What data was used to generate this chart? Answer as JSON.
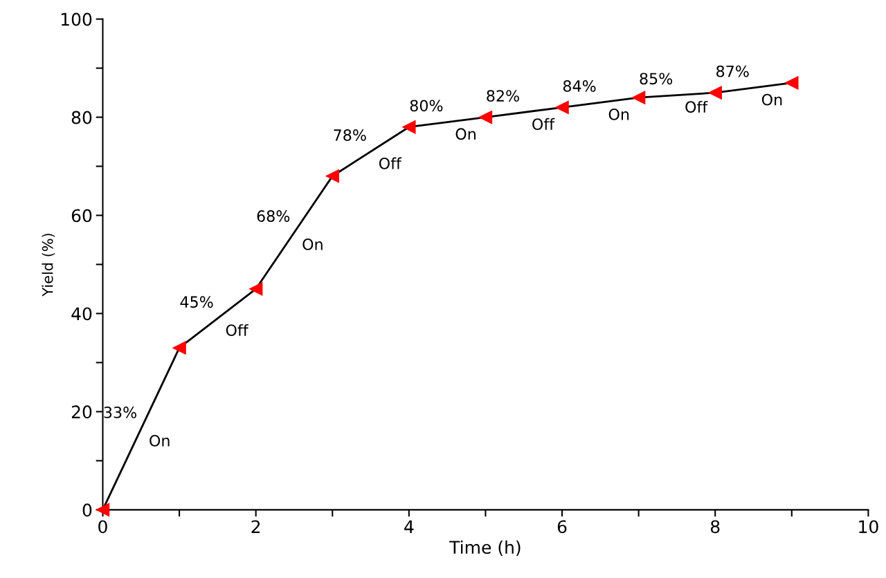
{
  "chart_data": {
    "type": "line",
    "xlabel": "Time (h)",
    "ylabel": "Yield (%)",
    "x": [
      0,
      1,
      2,
      3,
      4,
      5,
      6,
      7,
      8,
      9
    ],
    "series": [
      {
        "color": "#ff0000",
        "values": [
          0,
          33,
          45,
          68,
          78,
          80,
          82,
          84,
          85,
          87
        ]
      }
    ],
    "marker": "triangle",
    "line_style": "solid",
    "grid": false,
    "legend": false,
    "xlim": [
      0,
      10
    ],
    "ylim": [
      0,
      100
    ],
    "xticks": [
      0,
      {
        "value": 1,
        "label": null
      },
      2,
      {
        "value": 3,
        "label": null
      },
      4,
      {
        "value": 5,
        "label": null
      },
      6,
      {
        "value": 7,
        "label": null
      },
      8,
      {
        "value": 9,
        "label": null
      },
      10
    ],
    "yticks": [
      0,
      {
        "value": 10,
        "label": null
      },
      20,
      {
        "value": 30,
        "label": null
      },
      40,
      {
        "value": 50,
        "label": null
      },
      60,
      {
        "value": 70,
        "label": null
      },
      80,
      {
        "value": 90,
        "label": null
      },
      100
    ],
    "annotations": [
      {
        "text": "33%",
        "x": 0.5,
        "y": 16.5
      },
      {
        "text": "45%",
        "x": 1.5,
        "y": 39
      },
      {
        "text": "68%",
        "x": 2.5,
        "y": 56.5
      },
      {
        "text": "78%",
        "x": 3.5,
        "y": 73
      },
      {
        "text": "80%",
        "x": 4.5,
        "y": 79
      },
      {
        "text": "82%",
        "x": 5.5,
        "y": 81
      },
      {
        "text": "84%",
        "x": 6.5,
        "y": 83
      },
      {
        "text": "85%",
        "x": 7.5,
        "y": 84.5
      },
      {
        "text": "87%",
        "x": 8.5,
        "y": 86
      },
      {
        "text": "On",
        "x": 0.5,
        "y": 16.5
      },
      {
        "text": "Off",
        "x": 1.5,
        "y": 39
      },
      {
        "text": "On",
        "x": 2.5,
        "y": 56.5
      },
      {
        "text": "Off",
        "x": 3.5,
        "y": 73
      },
      {
        "text": "On",
        "x": 4.5,
        "y": 79
      },
      {
        "text": "Off",
        "x": 5.5,
        "y": 81
      },
      {
        "text": "On",
        "x": 6.5,
        "y": 83
      },
      {
        "text": "Off",
        "x": 7.5,
        "y": 84.5
      },
      {
        "text": "On",
        "x": 8.5,
        "y": 86
      }
    ]
  }
}
